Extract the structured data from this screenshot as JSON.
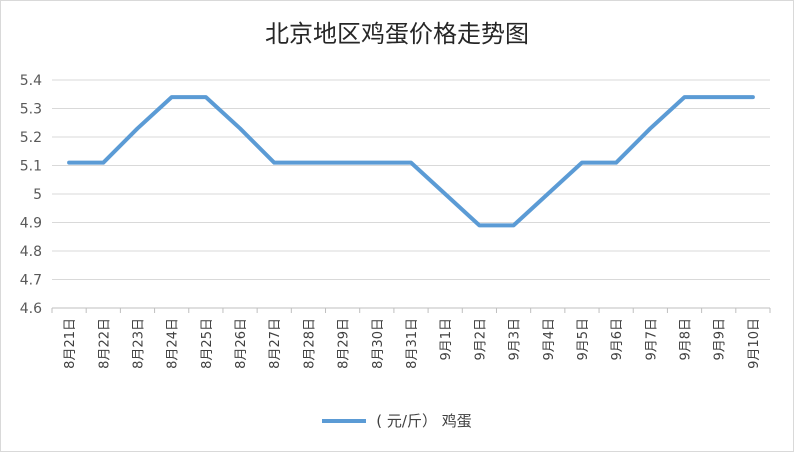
{
  "chart_data": {
    "type": "line",
    "title": "北京地区鸡蛋价格走势图",
    "xlabel": "",
    "ylabel": "",
    "ylim": [
      4.6,
      5.4
    ],
    "yticks": [
      "4.6",
      "4.7",
      "4.8",
      "4.9",
      "5",
      "5.1",
      "5.2",
      "5.3",
      "5.4"
    ],
    "grid": true,
    "legend_position": "bottom",
    "categories": [
      "8月21日",
      "8月22日",
      "8月23日",
      "8月24日",
      "8月25日",
      "8月26日",
      "8月27日",
      "8月28日",
      "8月29日",
      "8月30日",
      "8月31日",
      "9月1日",
      "9月2日",
      "9月3日",
      "9月4日",
      "9月5日",
      "9月6日",
      "9月7日",
      "9月8日",
      "9月9日",
      "9月10日"
    ],
    "series": [
      {
        "name": "( 元/斤） 鸡蛋",
        "color": "#5b9bd5",
        "values": [
          5.11,
          5.11,
          5.23,
          5.34,
          5.34,
          5.23,
          5.11,
          5.11,
          5.11,
          5.11,
          5.11,
          5.0,
          4.89,
          4.89,
          5.0,
          5.11,
          5.11,
          5.23,
          5.34,
          5.34,
          5.34
        ]
      }
    ]
  }
}
